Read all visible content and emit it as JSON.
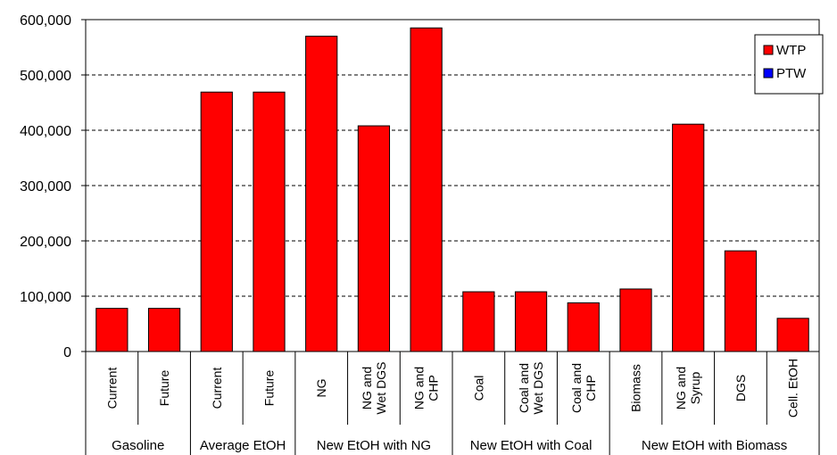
{
  "chart_data": {
    "type": "bar",
    "ylim": [
      0,
      600000
    ],
    "yticks": [
      "0",
      "100,000",
      "200,000",
      "300,000",
      "400,000",
      "500,000",
      "600,000"
    ],
    "grid": true,
    "legend_position": "top-right",
    "categories": [
      [
        "Current"
      ],
      [
        "Future"
      ],
      [
        "Current"
      ],
      [
        "Future"
      ],
      [
        "NG"
      ],
      [
        "NG and",
        "Wet DGS"
      ],
      [
        "NG and",
        "CHP"
      ],
      [
        "Coal"
      ],
      [
        "Coal and",
        "Wet DGS"
      ],
      [
        "Coal and",
        "CHP"
      ],
      [
        "Biomass"
      ],
      [
        "NG and",
        "Syrup"
      ],
      [
        "DGS"
      ],
      [
        "Cell. EtOH"
      ]
    ],
    "groups": [
      {
        "label": "Gasoline",
        "count": 2
      },
      {
        "label": "Average EtOH",
        "count": 2
      },
      {
        "label": "New EtOH with NG",
        "count": 3
      },
      {
        "label": "New EtOH with Coal",
        "count": 3
      },
      {
        "label": "New EtOH with Biomass",
        "count": 4
      }
    ],
    "series": [
      {
        "name": "WTP",
        "color": "#ff0000",
        "values": [
          78000,
          78000,
          469000,
          469000,
          570000,
          408000,
          585000,
          108000,
          108000,
          88000,
          113000,
          411000,
          182000,
          60000
        ]
      },
      {
        "name": "PTW",
        "color": "#0000ff",
        "values": [
          0,
          0,
          0,
          0,
          0,
          0,
          0,
          0,
          0,
          0,
          0,
          0,
          0,
          0
        ]
      }
    ]
  }
}
